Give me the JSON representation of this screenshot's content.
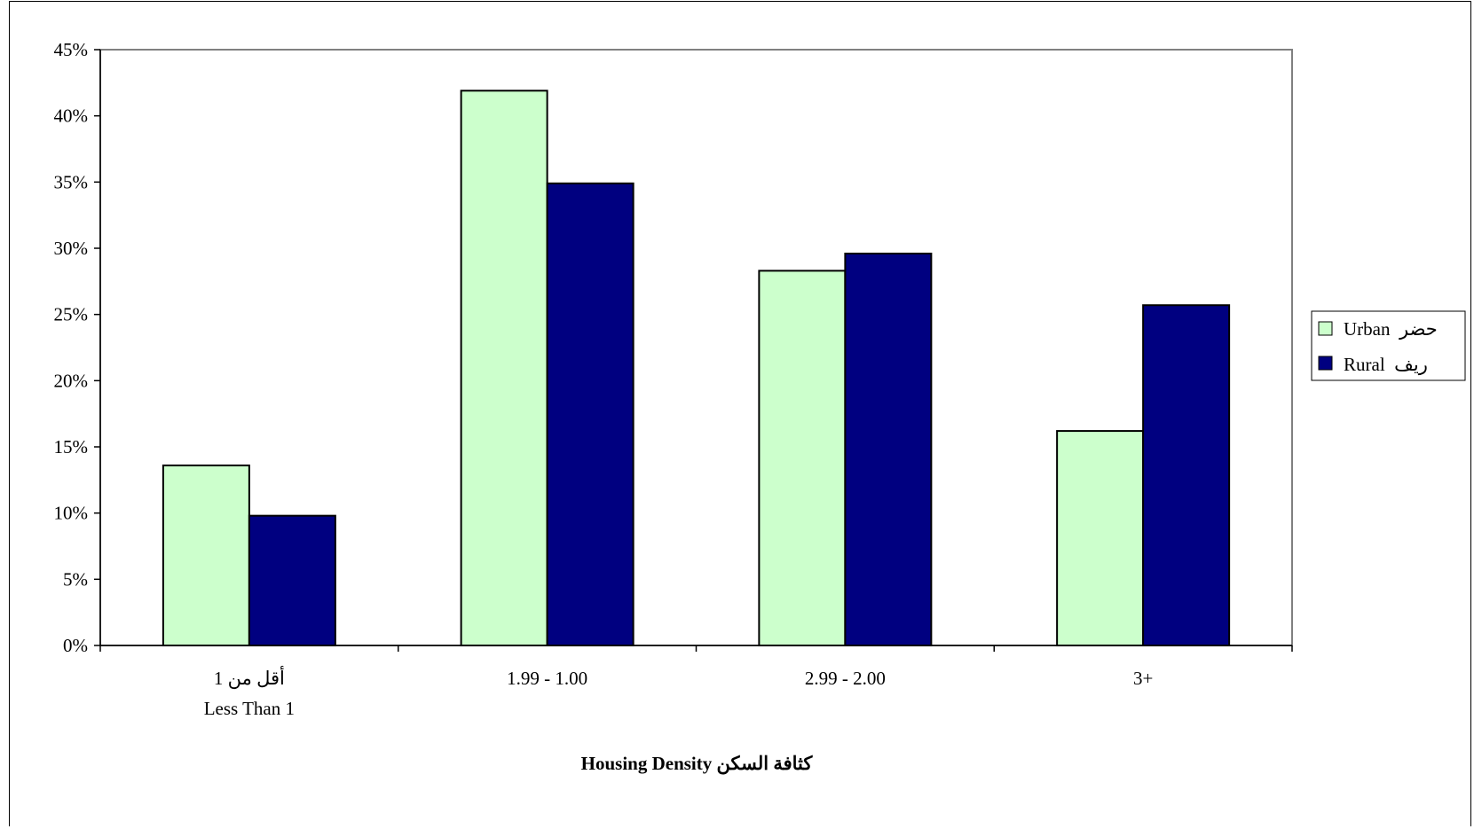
{
  "chart_data": {
    "type": "bar",
    "categories": [
      {
        "line1": "أقل من 1",
        "line2": "Less Than 1"
      },
      {
        "line1": "1.99 - 1.00",
        "line2": ""
      },
      {
        "line1": "2.99 - 2.00",
        "line2": ""
      },
      {
        "line1": "3+",
        "line2": ""
      }
    ],
    "series": [
      {
        "name": "Urban  حضر",
        "color": "#ccffcc",
        "values": [
          13.6,
          41.9,
          28.3,
          16.2
        ]
      },
      {
        "name": "Rural  ريف",
        "color": "#000080",
        "values": [
          9.8,
          34.9,
          29.6,
          25.7
        ]
      }
    ],
    "xlabel": "Housing Density   كثافة السكن",
    "ylabel": "",
    "ylim": [
      0,
      45
    ],
    "yticks": [
      "0%",
      "5%",
      "10%",
      "15%",
      "20%",
      "25%",
      "30%",
      "35%",
      "40%",
      "45%"
    ],
    "grid": false,
    "legend": "right"
  }
}
